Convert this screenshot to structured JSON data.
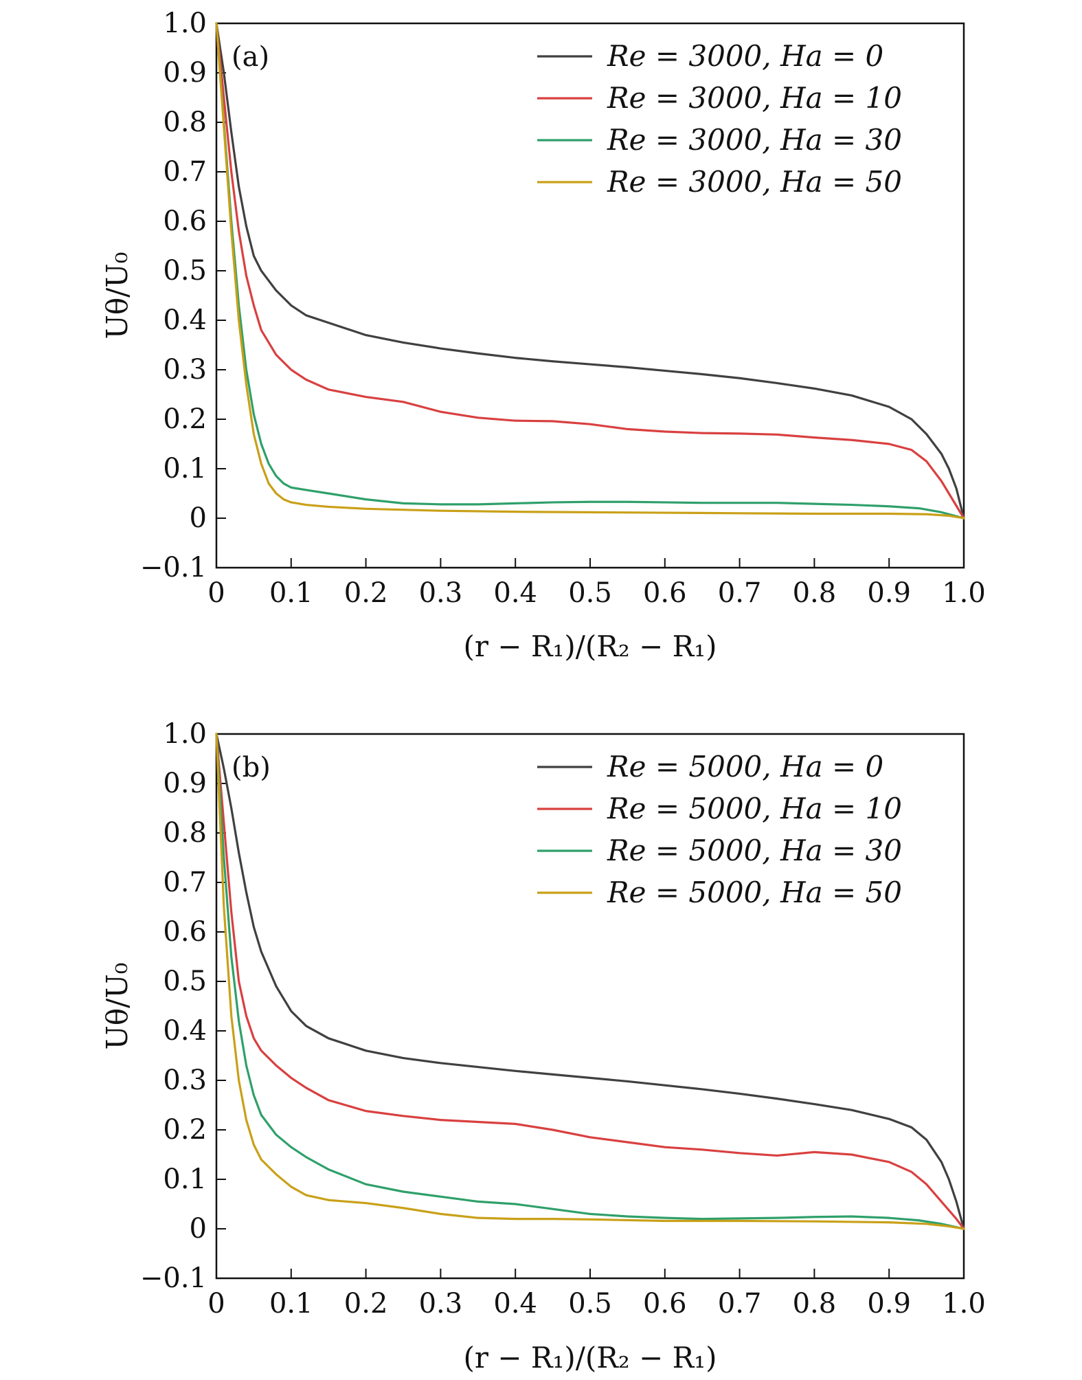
{
  "chart_data": [
    {
      "type": "line",
      "panel_label": "(a)",
      "xlabel": "(r − R₁)/(R₂ − R₁)",
      "ylabel": "Uθ/U₀",
      "xlim": [
        0,
        1.0
      ],
      "ylim": [
        -0.1,
        1.0
      ],
      "xticks": [
        0,
        0.1,
        0.2,
        0.3,
        0.4,
        0.5,
        0.6,
        0.7,
        0.8,
        0.9,
        1.0
      ],
      "xtick_labels": [
        "0",
        "0.1",
        "0.2",
        "0.3",
        "0.4",
        "0.5",
        "0.6",
        "0.7",
        "0.8",
        "0.9",
        "1.0"
      ],
      "yticks": [
        -0.1,
        0,
        0.1,
        0.2,
        0.3,
        0.4,
        0.5,
        0.6,
        0.7,
        0.8,
        0.9,
        1.0
      ],
      "ytick_labels": [
        "−0.1",
        "0",
        "0.1",
        "0.2",
        "0.3",
        "0.4",
        "0.5",
        "0.6",
        "0.7",
        "0.8",
        "0.9",
        "1.0"
      ],
      "grid": false,
      "legend_position": "top-right",
      "series": [
        {
          "name": "Re = 3000, Ha = 0",
          "color": "#404040",
          "x": [
            0,
            0.01,
            0.02,
            0.03,
            0.04,
            0.05,
            0.06,
            0.08,
            0.1,
            0.12,
            0.15,
            0.2,
            0.25,
            0.3,
            0.35,
            0.4,
            0.45,
            0.5,
            0.55,
            0.6,
            0.65,
            0.7,
            0.75,
            0.8,
            0.85,
            0.9,
            0.93,
            0.95,
            0.97,
            0.98,
            0.99,
            1.0
          ],
          "y": [
            1.0,
            0.9,
            0.78,
            0.67,
            0.59,
            0.53,
            0.5,
            0.46,
            0.43,
            0.41,
            0.395,
            0.37,
            0.355,
            0.343,
            0.333,
            0.324,
            0.317,
            0.311,
            0.305,
            0.298,
            0.291,
            0.283,
            0.273,
            0.262,
            0.248,
            0.225,
            0.2,
            0.17,
            0.13,
            0.1,
            0.06,
            0.0
          ]
        },
        {
          "name": "Re = 3000, Ha = 10",
          "color": "#d94040",
          "x": [
            0,
            0.01,
            0.02,
            0.03,
            0.04,
            0.05,
            0.06,
            0.08,
            0.1,
            0.12,
            0.15,
            0.2,
            0.25,
            0.3,
            0.35,
            0.4,
            0.45,
            0.5,
            0.55,
            0.6,
            0.65,
            0.7,
            0.75,
            0.8,
            0.85,
            0.9,
            0.93,
            0.95,
            0.97,
            0.99,
            1.0
          ],
          "y": [
            1.0,
            0.85,
            0.7,
            0.58,
            0.49,
            0.43,
            0.38,
            0.33,
            0.3,
            0.28,
            0.26,
            0.245,
            0.235,
            0.215,
            0.203,
            0.197,
            0.196,
            0.19,
            0.18,
            0.175,
            0.172,
            0.171,
            0.169,
            0.163,
            0.158,
            0.15,
            0.138,
            0.115,
            0.075,
            0.025,
            0.0
          ]
        },
        {
          "name": "Re = 3000, Ha = 30",
          "color": "#2fa06a",
          "x": [
            0,
            0.01,
            0.02,
            0.03,
            0.04,
            0.05,
            0.06,
            0.07,
            0.08,
            0.09,
            0.1,
            0.12,
            0.15,
            0.2,
            0.25,
            0.3,
            0.35,
            0.4,
            0.45,
            0.5,
            0.55,
            0.6,
            0.65,
            0.7,
            0.75,
            0.8,
            0.85,
            0.9,
            0.94,
            0.97,
            1.0
          ],
          "y": [
            1.0,
            0.8,
            0.6,
            0.43,
            0.3,
            0.21,
            0.15,
            0.11,
            0.085,
            0.07,
            0.062,
            0.057,
            0.05,
            0.038,
            0.03,
            0.028,
            0.028,
            0.03,
            0.032,
            0.033,
            0.033,
            0.032,
            0.031,
            0.031,
            0.031,
            0.029,
            0.027,
            0.024,
            0.02,
            0.012,
            0.0
          ]
        },
        {
          "name": "Re = 3000, Ha = 50",
          "color": "#c9a018",
          "x": [
            0,
            0.01,
            0.02,
            0.03,
            0.04,
            0.05,
            0.06,
            0.07,
            0.08,
            0.09,
            0.1,
            0.12,
            0.15,
            0.2,
            0.3,
            0.4,
            0.5,
            0.6,
            0.7,
            0.8,
            0.9,
            0.95,
            0.98,
            1.0
          ],
          "y": [
            1.0,
            0.79,
            0.58,
            0.4,
            0.27,
            0.17,
            0.11,
            0.07,
            0.05,
            0.038,
            0.032,
            0.027,
            0.023,
            0.019,
            0.015,
            0.013,
            0.012,
            0.011,
            0.01,
            0.009,
            0.009,
            0.008,
            0.005,
            0.0
          ]
        }
      ]
    },
    {
      "type": "line",
      "panel_label": "(b)",
      "xlabel": "(r − R₁)/(R₂ − R₁)",
      "ylabel": "Uθ/U₀",
      "xlim": [
        0,
        1.0
      ],
      "ylim": [
        -0.1,
        1.0
      ],
      "xticks": [
        0,
        0.1,
        0.2,
        0.3,
        0.4,
        0.5,
        0.6,
        0.7,
        0.8,
        0.9,
        1.0
      ],
      "xtick_labels": [
        "0",
        "0.1",
        "0.2",
        "0.3",
        "0.4",
        "0.5",
        "0.6",
        "0.7",
        "0.8",
        "0.9",
        "1.0"
      ],
      "yticks": [
        -0.1,
        0,
        0.1,
        0.2,
        0.3,
        0.4,
        0.5,
        0.6,
        0.7,
        0.8,
        0.9,
        1.0
      ],
      "ytick_labels": [
        "−0.1",
        "0",
        "0.1",
        "0.2",
        "0.3",
        "0.4",
        "0.5",
        "0.6",
        "0.7",
        "0.8",
        "0.9",
        "1.0"
      ],
      "grid": false,
      "legend_position": "top-right",
      "series": [
        {
          "name": "Re = 5000, Ha = 0",
          "color": "#404040",
          "x": [
            0,
            0.01,
            0.02,
            0.03,
            0.04,
            0.05,
            0.06,
            0.08,
            0.1,
            0.12,
            0.15,
            0.2,
            0.25,
            0.3,
            0.35,
            0.4,
            0.45,
            0.5,
            0.55,
            0.6,
            0.65,
            0.7,
            0.75,
            0.8,
            0.85,
            0.9,
            0.93,
            0.95,
            0.97,
            0.98,
            0.99,
            1.0
          ],
          "y": [
            1.0,
            0.93,
            0.85,
            0.76,
            0.68,
            0.61,
            0.56,
            0.49,
            0.44,
            0.41,
            0.385,
            0.36,
            0.345,
            0.335,
            0.327,
            0.319,
            0.312,
            0.305,
            0.298,
            0.29,
            0.282,
            0.273,
            0.263,
            0.252,
            0.24,
            0.222,
            0.205,
            0.18,
            0.135,
            0.1,
            0.055,
            0.0
          ]
        },
        {
          "name": "Re = 5000, Ha = 10",
          "color": "#d94040",
          "x": [
            0,
            0.01,
            0.02,
            0.03,
            0.04,
            0.05,
            0.06,
            0.08,
            0.1,
            0.12,
            0.15,
            0.2,
            0.25,
            0.3,
            0.35,
            0.4,
            0.45,
            0.5,
            0.55,
            0.6,
            0.65,
            0.7,
            0.75,
            0.8,
            0.85,
            0.9,
            0.93,
            0.95,
            0.97,
            0.99,
            1.0
          ],
          "y": [
            1.0,
            0.82,
            0.64,
            0.5,
            0.43,
            0.385,
            0.36,
            0.33,
            0.305,
            0.285,
            0.26,
            0.238,
            0.228,
            0.22,
            0.216,
            0.212,
            0.2,
            0.185,
            0.175,
            0.165,
            0.16,
            0.153,
            0.148,
            0.155,
            0.15,
            0.135,
            0.115,
            0.09,
            0.055,
            0.02,
            0.0
          ]
        },
        {
          "name": "Re = 5000, Ha = 30",
          "color": "#2fa06a",
          "x": [
            0,
            0.01,
            0.02,
            0.03,
            0.04,
            0.05,
            0.06,
            0.08,
            0.1,
            0.12,
            0.15,
            0.2,
            0.25,
            0.3,
            0.35,
            0.4,
            0.45,
            0.5,
            0.55,
            0.6,
            0.65,
            0.7,
            0.75,
            0.8,
            0.85,
            0.9,
            0.94,
            0.97,
            1.0
          ],
          "y": [
            1.0,
            0.75,
            0.55,
            0.42,
            0.33,
            0.27,
            0.23,
            0.19,
            0.165,
            0.145,
            0.12,
            0.09,
            0.075,
            0.065,
            0.055,
            0.05,
            0.04,
            0.03,
            0.025,
            0.022,
            0.02,
            0.021,
            0.022,
            0.024,
            0.025,
            0.022,
            0.017,
            0.01,
            0.0
          ]
        },
        {
          "name": "Re = 5000, Ha = 50",
          "color": "#c9a018",
          "x": [
            0,
            0.01,
            0.02,
            0.03,
            0.04,
            0.05,
            0.06,
            0.08,
            0.1,
            0.12,
            0.15,
            0.2,
            0.25,
            0.3,
            0.35,
            0.4,
            0.45,
            0.5,
            0.6,
            0.7,
            0.8,
            0.9,
            0.95,
            0.98,
            1.0
          ],
          "y": [
            1.0,
            0.65,
            0.43,
            0.3,
            0.22,
            0.17,
            0.14,
            0.11,
            0.085,
            0.068,
            0.058,
            0.052,
            0.042,
            0.03,
            0.022,
            0.02,
            0.02,
            0.019,
            0.016,
            0.016,
            0.015,
            0.013,
            0.01,
            0.005,
            0.0
          ]
        }
      ]
    }
  ]
}
